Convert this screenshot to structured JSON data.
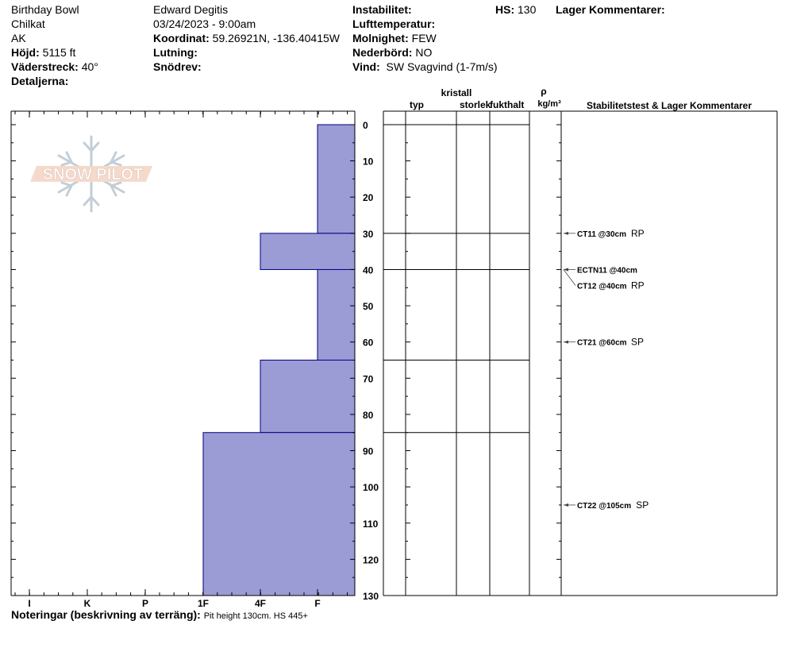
{
  "site": {
    "location": "Birthday Bowl",
    "range": "Chilkat",
    "state": "AK",
    "elevation_label": "Höjd:",
    "elevation": "5115 ft",
    "aspect_label": "Väderstreck:",
    "aspect": "40°",
    "details_label": "Detaljerna:"
  },
  "observer": {
    "name": "Edward Degitis",
    "datetime": "03/24/2023 - 9:00am",
    "coord_label": "Koordinat:",
    "coord": "59.26921N, -136.40415W",
    "slope_label": "Lutning:",
    "drift_label": "Snödrev:"
  },
  "conditions": {
    "instability_label": "Instabilitet:",
    "air_temp_label": "Lufttemperatur:",
    "sky_label": "Molnighet:",
    "sky": "FEW",
    "precip_label": "Nederbörd:",
    "precip": "NO",
    "wind_label": "Vind:",
    "wind": "SW Svagvind (1-7m/s)",
    "hs_label": "HS:",
    "hs": "130",
    "layer_comments_label": "Lager Kommentarer:"
  },
  "logo": {
    "text": "SNOW PILOT"
  },
  "notes": {
    "label": "Noteringar (beskrivning av terräng):",
    "value": "Pit height 130cm. HS 445+"
  },
  "colors": {
    "layer_fill": "#9b9bd6",
    "layer_stroke": "#000080",
    "axis": "#000000"
  },
  "chart_data": {
    "type": "bar",
    "orientation": "horizontal",
    "y_axis": {
      "ylim": [
        0,
        130
      ],
      "inverted": true,
      "ticks": [
        0,
        10,
        20,
        30,
        40,
        50,
        60,
        70,
        80,
        90,
        100,
        110,
        120,
        130
      ]
    },
    "x_axis": {
      "categories": [
        "I",
        "K",
        "P",
        "1F",
        "4F",
        "F"
      ],
      "reversed": true
    },
    "layers": [
      {
        "top": 0,
        "bottom": 30,
        "hardness": "F"
      },
      {
        "top": 30,
        "bottom": 40,
        "hardness": "4F"
      },
      {
        "top": 40,
        "bottom": 65,
        "hardness": "F"
      },
      {
        "top": 65,
        "bottom": 85,
        "hardness": "4F"
      },
      {
        "top": 85,
        "bottom": 130,
        "hardness": "1F"
      }
    ],
    "layer_boundaries": [
      0,
      30,
      40,
      65,
      85
    ],
    "column_headers": {
      "crystal_group": "kristall",
      "type": "typ",
      "size": "storlek",
      "moisture": "fukthalt",
      "density_symbol": "ρ",
      "density_unit": "kg/m³",
      "stability": "Stabilitetstest & Lager Kommentarer"
    },
    "tests": [
      {
        "depth": 30,
        "label": "CT11 @30cm",
        "result": "RP"
      },
      {
        "depth": 40,
        "label": "ECTN11 @40cm",
        "result": ""
      },
      {
        "depth": 40,
        "label": "CT12 @40cm",
        "result": "RP"
      },
      {
        "depth": 60,
        "label": "CT21 @60cm",
        "result": "SP"
      },
      {
        "depth": 105,
        "label": "CT22 @105cm",
        "result": "SP"
      }
    ]
  }
}
